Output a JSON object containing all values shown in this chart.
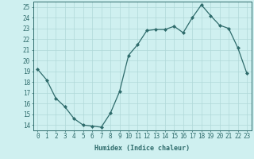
{
  "x": [
    0,
    1,
    2,
    3,
    4,
    5,
    6,
    7,
    8,
    9,
    10,
    11,
    12,
    13,
    14,
    15,
    16,
    17,
    18,
    19,
    20,
    21,
    22,
    23
  ],
  "y": [
    19.2,
    18.2,
    16.5,
    15.7,
    14.6,
    14.0,
    13.9,
    13.8,
    15.1,
    17.1,
    20.5,
    21.5,
    22.8,
    22.9,
    22.9,
    23.2,
    22.6,
    24.0,
    25.2,
    24.2,
    23.3,
    23.0,
    21.2,
    18.8
  ],
  "line_color": "#2e6b6b",
  "marker": "D",
  "markersize": 2.0,
  "linewidth": 0.9,
  "xlabel": "Humidex (Indice chaleur)",
  "xlim": [
    -0.5,
    23.5
  ],
  "ylim": [
    13.5,
    25.5
  ],
  "yticks": [
    14,
    15,
    16,
    17,
    18,
    19,
    20,
    21,
    22,
    23,
    24,
    25
  ],
  "xticks": [
    0,
    1,
    2,
    3,
    4,
    5,
    6,
    7,
    8,
    9,
    10,
    11,
    12,
    13,
    14,
    15,
    16,
    17,
    18,
    19,
    20,
    21,
    22,
    23
  ],
  "bg_color": "#cff0f0",
  "grid_color": "#b0d8d8",
  "tick_color": "#2e6b6b",
  "label_color": "#2e6b6b",
  "xlabel_fontsize": 6.0,
  "tick_fontsize": 5.5
}
